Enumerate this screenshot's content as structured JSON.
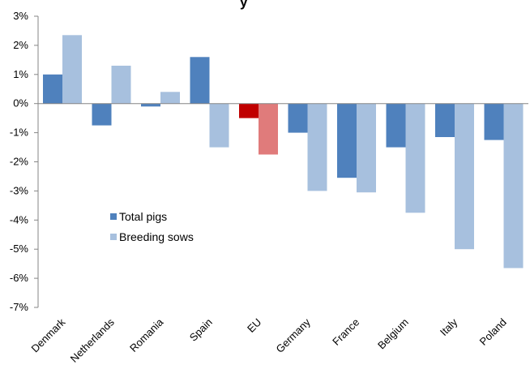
{
  "chart_data": {
    "type": "bar",
    "title_fragment": "y",
    "categories": [
      "Denmark",
      "Netherlands",
      "Romania",
      "Spain",
      "EU",
      "Germany",
      "France",
      "Belgium",
      "Italy",
      "Poland"
    ],
    "series": [
      {
        "name": "Total pigs",
        "color": "#4f81bd",
        "values": [
          1.0,
          -0.75,
          -0.1,
          1.6,
          -0.5,
          -1.0,
          -2.55,
          -1.5,
          -1.15,
          -1.25
        ]
      },
      {
        "name": "Breeding sows",
        "color": "#a7c0de",
        "values": [
          2.35,
          1.3,
          0.4,
          -1.5,
          -1.75,
          -3.0,
          -3.05,
          -3.75,
          -5.0,
          -5.65
        ]
      }
    ],
    "highlight": {
      "category": "EU",
      "colors": [
        "#c00000",
        "#e07b7b"
      ]
    },
    "ylim": [
      -7,
      3
    ],
    "yticks": [
      "3%",
      "2%",
      "1%",
      "0%",
      "-1%",
      "-2%",
      "-3%",
      "-4%",
      "-5%",
      "-6%",
      "-7%"
    ],
    "legend": {
      "placement": "left-middle",
      "items": [
        {
          "label": "Total pigs",
          "color": "#4f81bd"
        },
        {
          "label": "Breeding sows",
          "color": "#a7c0de"
        }
      ]
    },
    "grid": false
  }
}
